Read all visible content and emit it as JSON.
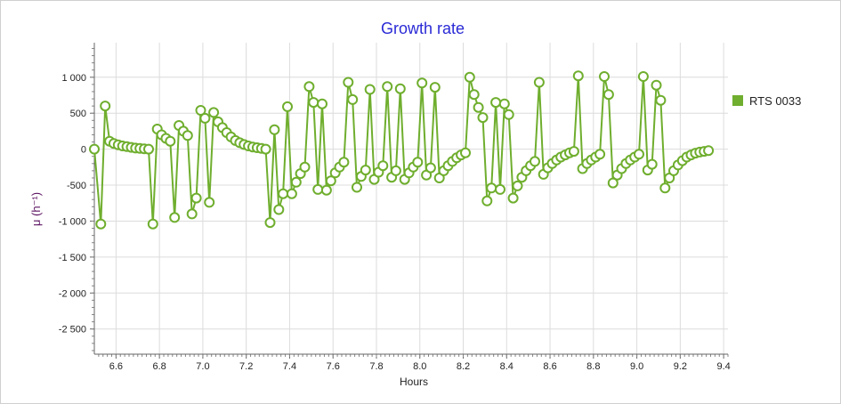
{
  "chart_data": {
    "type": "line",
    "title": "Growth rate",
    "xlabel": "Hours",
    "ylabel": "μ (h⁻¹)",
    "xlim": [
      6.5,
      9.42
    ],
    "ylim": [
      -2850,
      1480
    ],
    "grid": true,
    "legend_position": "right",
    "series_color": "#6fae2e",
    "x_ticks": [
      "6.6",
      "6.8",
      "7.0",
      "7.2",
      "7.4",
      "7.6",
      "7.8",
      "8.0",
      "8.2",
      "8.4",
      "8.6",
      "8.8",
      "9.0",
      "9.2",
      "9.4"
    ],
    "x_tick_values": [
      6.6,
      6.8,
      7.0,
      7.2,
      7.4,
      7.6,
      7.8,
      8.0,
      8.2,
      8.4,
      8.6,
      8.8,
      9.0,
      9.2,
      9.4
    ],
    "y_ticks": [
      "1 000",
      "500",
      "0",
      "-500",
      "-1 000",
      "-1 500",
      "-2 000",
      "-2 500"
    ],
    "y_tick_values": [
      1000,
      500,
      0,
      -500,
      -1000,
      -1500,
      -2000,
      -2500
    ],
    "series": [
      {
        "name": "RTS 0033",
        "points": [
          [
            6.5,
            0
          ],
          [
            6.53,
            -1040
          ],
          [
            6.55,
            600
          ],
          [
            6.57,
            110
          ],
          [
            6.59,
            80
          ],
          [
            6.61,
            60
          ],
          [
            6.63,
            45
          ],
          [
            6.65,
            35
          ],
          [
            6.67,
            25
          ],
          [
            6.69,
            15
          ],
          [
            6.71,
            10
          ],
          [
            6.73,
            5
          ],
          [
            6.75,
            0
          ],
          [
            6.77,
            -1040
          ],
          [
            6.79,
            280
          ],
          [
            6.81,
            200
          ],
          [
            6.83,
            150
          ],
          [
            6.85,
            110
          ],
          [
            6.87,
            -950
          ],
          [
            6.89,
            330
          ],
          [
            6.91,
            250
          ],
          [
            6.93,
            190
          ],
          [
            6.95,
            -900
          ],
          [
            6.97,
            -680
          ],
          [
            6.99,
            540
          ],
          [
            7.01,
            430
          ],
          [
            7.03,
            -740
          ],
          [
            7.05,
            510
          ],
          [
            7.07,
            380
          ],
          [
            7.09,
            300
          ],
          [
            7.11,
            230
          ],
          [
            7.13,
            170
          ],
          [
            7.15,
            120
          ],
          [
            7.17,
            90
          ],
          [
            7.19,
            65
          ],
          [
            7.21,
            45
          ],
          [
            7.23,
            30
          ],
          [
            7.25,
            20
          ],
          [
            7.27,
            10
          ],
          [
            7.29,
            0
          ],
          [
            7.31,
            -1020
          ],
          [
            7.33,
            270
          ],
          [
            7.35,
            -840
          ],
          [
            7.37,
            -620
          ],
          [
            7.39,
            590
          ],
          [
            7.41,
            -620
          ],
          [
            7.43,
            -460
          ],
          [
            7.45,
            -340
          ],
          [
            7.47,
            -250
          ],
          [
            7.49,
            870
          ],
          [
            7.51,
            650
          ],
          [
            7.53,
            -560
          ],
          [
            7.55,
            630
          ],
          [
            7.57,
            -570
          ],
          [
            7.59,
            -440
          ],
          [
            7.61,
            -330
          ],
          [
            7.63,
            -250
          ],
          [
            7.65,
            -180
          ],
          [
            7.67,
            930
          ],
          [
            7.69,
            690
          ],
          [
            7.71,
            -530
          ],
          [
            7.73,
            -380
          ],
          [
            7.75,
            -290
          ],
          [
            7.77,
            830
          ],
          [
            7.79,
            -420
          ],
          [
            7.81,
            -320
          ],
          [
            7.83,
            -230
          ],
          [
            7.85,
            870
          ],
          [
            7.87,
            -390
          ],
          [
            7.89,
            -300
          ],
          [
            7.91,
            840
          ],
          [
            7.93,
            -420
          ],
          [
            7.95,
            -330
          ],
          [
            7.97,
            -250
          ],
          [
            7.99,
            -180
          ],
          [
            8.01,
            920
          ],
          [
            8.03,
            -360
          ],
          [
            8.05,
            -260
          ],
          [
            8.07,
            860
          ],
          [
            8.09,
            -400
          ],
          [
            8.11,
            -300
          ],
          [
            8.13,
            -230
          ],
          [
            8.15,
            -170
          ],
          [
            8.17,
            -120
          ],
          [
            8.19,
            -80
          ],
          [
            8.21,
            -50
          ],
          [
            8.23,
            1000
          ],
          [
            8.25,
            760
          ],
          [
            8.27,
            580
          ],
          [
            8.29,
            440
          ],
          [
            8.31,
            -720
          ],
          [
            8.33,
            -540
          ],
          [
            8.35,
            650
          ],
          [
            8.37,
            -560
          ],
          [
            8.39,
            630
          ],
          [
            8.41,
            480
          ],
          [
            8.43,
            -680
          ],
          [
            8.45,
            -510
          ],
          [
            8.47,
            -390
          ],
          [
            8.49,
            -300
          ],
          [
            8.51,
            -230
          ],
          [
            8.53,
            -170
          ],
          [
            8.55,
            930
          ],
          [
            8.57,
            -350
          ],
          [
            8.59,
            -260
          ],
          [
            8.61,
            -200
          ],
          [
            8.63,
            -150
          ],
          [
            8.65,
            -110
          ],
          [
            8.67,
            -80
          ],
          [
            8.69,
            -50
          ],
          [
            8.71,
            -30
          ],
          [
            8.73,
            1020
          ],
          [
            8.75,
            -270
          ],
          [
            8.77,
            -200
          ],
          [
            8.79,
            -150
          ],
          [
            8.81,
            -110
          ],
          [
            8.83,
            -70
          ],
          [
            8.85,
            1010
          ],
          [
            8.87,
            760
          ],
          [
            8.89,
            -470
          ],
          [
            8.91,
            -360
          ],
          [
            8.93,
            -270
          ],
          [
            8.95,
            -200
          ],
          [
            8.97,
            -150
          ],
          [
            8.99,
            -110
          ],
          [
            9.01,
            -70
          ],
          [
            9.03,
            1010
          ],
          [
            9.05,
            -290
          ],
          [
            9.07,
            -210
          ],
          [
            9.09,
            890
          ],
          [
            9.11,
            680
          ],
          [
            9.13,
            -540
          ],
          [
            9.15,
            -400
          ],
          [
            9.17,
            -300
          ],
          [
            9.19,
            -220
          ],
          [
            9.21,
            -160
          ],
          [
            9.23,
            -110
          ],
          [
            9.25,
            -80
          ],
          [
            9.27,
            -55
          ],
          [
            9.29,
            -40
          ],
          [
            9.31,
            -30
          ],
          [
            9.33,
            -20
          ]
        ]
      }
    ]
  }
}
